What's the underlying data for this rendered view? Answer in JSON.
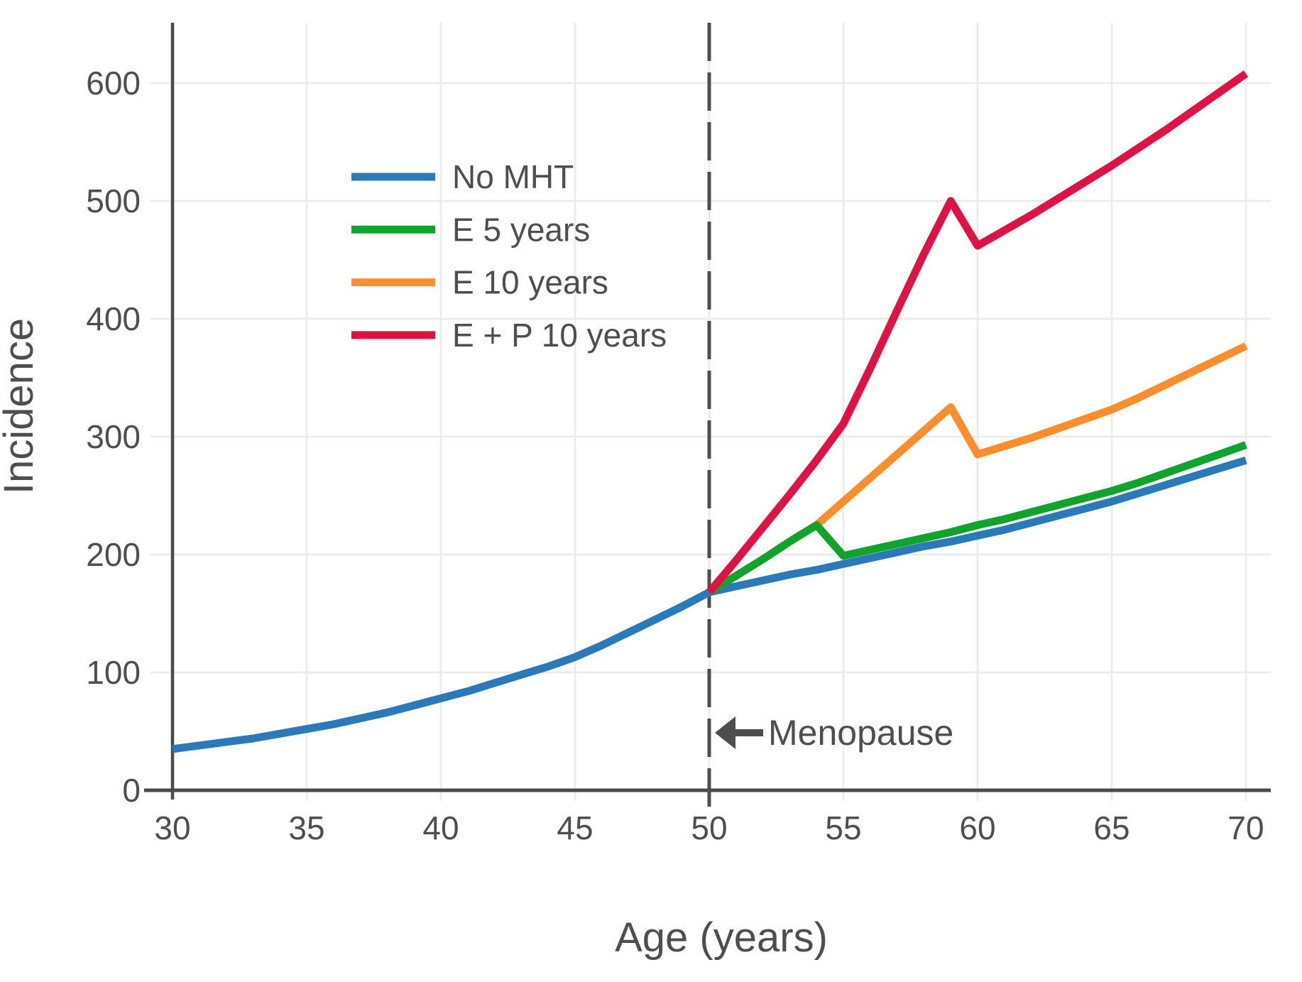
{
  "figure": {
    "xlabel": "Age (years)",
    "ylabel": "Incidence",
    "annotation_text": "Menopause"
  },
  "colors": {
    "background": "#ffffff",
    "grid": "#ececec",
    "axis": "#4a4a4a",
    "text": "#4e4e4e",
    "dashed_line": "#4e4e4e",
    "blue": "#2a7ab9",
    "green": "#10a42d",
    "orange": "#fe8d2b",
    "red": "#e01145"
  },
  "legend": {
    "items": [
      {
        "label": "No MHT",
        "color": "#2a7ab9"
      },
      {
        "label": "E 5 years",
        "color": "#10a42d"
      },
      {
        "label": "E 10 years",
        "color": "#fe8d2b"
      },
      {
        "label": "E + P 10 years",
        "color": "#e01145"
      }
    ]
  },
  "chart_data": {
    "type": "line",
    "title": "",
    "xlabel": "Age (years)",
    "ylabel": "Incidence",
    "xlim": [
      29,
      71
    ],
    "ylim": [
      0,
      650
    ],
    "grid": true,
    "legend_position": "upper-left-inside",
    "x_ticks": [
      30,
      35,
      40,
      45,
      50,
      55,
      60,
      65,
      70
    ],
    "y_ticks": [
      0,
      100,
      200,
      300,
      400,
      500,
      600
    ],
    "vline": {
      "x": 50,
      "style": "dashed",
      "color": "#4e4e4e",
      "label": "Menopause"
    },
    "annotations": [
      {
        "text": "Menopause",
        "x": 50.2,
        "y": 49,
        "arrow": "points-left-at-dashed-line"
      }
    ],
    "series": [
      {
        "name": "No MHT",
        "color": "#2a7ab9",
        "points": [
          [
            30,
            35
          ],
          [
            31,
            38
          ],
          [
            32,
            41
          ],
          [
            33,
            44
          ],
          [
            34,
            48
          ],
          [
            35,
            52
          ],
          [
            36,
            56
          ],
          [
            37,
            61
          ],
          [
            38,
            66
          ],
          [
            39,
            72
          ],
          [
            40,
            78
          ],
          [
            41,
            84
          ],
          [
            42,
            91
          ],
          [
            43,
            98
          ],
          [
            44,
            105
          ],
          [
            45,
            113
          ],
          [
            46,
            123
          ],
          [
            47,
            134
          ],
          [
            48,
            145
          ],
          [
            49,
            156
          ],
          [
            50,
            168
          ],
          [
            51,
            173
          ],
          [
            52,
            178
          ],
          [
            53,
            183
          ],
          [
            54,
            187
          ],
          [
            55,
            192
          ],
          [
            56,
            197
          ],
          [
            57,
            202
          ],
          [
            58,
            207
          ],
          [
            59,
            211
          ],
          [
            60,
            216
          ],
          [
            61,
            221
          ],
          [
            62,
            227
          ],
          [
            63,
            233
          ],
          [
            64,
            239
          ],
          [
            65,
            245
          ],
          [
            66,
            252
          ],
          [
            67,
            259
          ],
          [
            68,
            266
          ],
          [
            69,
            273
          ],
          [
            70,
            280
          ]
        ]
      },
      {
        "name": "E 5 years",
        "color": "#10a42d",
        "points": [
          [
            50,
            168
          ],
          [
            51,
            182
          ],
          [
            52,
            196
          ],
          [
            53,
            211
          ],
          [
            54,
            225
          ],
          [
            55,
            199
          ],
          [
            56,
            204
          ],
          [
            57,
            209
          ],
          [
            58,
            214
          ],
          [
            59,
            219
          ],
          [
            60,
            225
          ],
          [
            61,
            230
          ],
          [
            62,
            236
          ],
          [
            63,
            242
          ],
          [
            64,
            248
          ],
          [
            65,
            254
          ],
          [
            66,
            261
          ],
          [
            67,
            269
          ],
          [
            68,
            277
          ],
          [
            69,
            285
          ],
          [
            70,
            293
          ]
        ]
      },
      {
        "name": "E 10 years",
        "color": "#fe8d2b",
        "points": [
          [
            50,
            168
          ],
          [
            51,
            182
          ],
          [
            52,
            196
          ],
          [
            53,
            211
          ],
          [
            54,
            225
          ],
          [
            55,
            245
          ],
          [
            56,
            265
          ],
          [
            57,
            285
          ],
          [
            58,
            305
          ],
          [
            59,
            325
          ],
          [
            60,
            285
          ],
          [
            61,
            292
          ],
          [
            62,
            299
          ],
          [
            63,
            307
          ],
          [
            64,
            315
          ],
          [
            65,
            323
          ],
          [
            66,
            333
          ],
          [
            67,
            344
          ],
          [
            68,
            355
          ],
          [
            69,
            366
          ],
          [
            70,
            377
          ]
        ]
      },
      {
        "name": "E + P 10 years",
        "color": "#e01145",
        "points": [
          [
            50,
            168
          ],
          [
            51,
            195
          ],
          [
            52,
            223
          ],
          [
            53,
            251
          ],
          [
            54,
            280
          ],
          [
            55,
            311
          ],
          [
            56,
            358
          ],
          [
            57,
            407
          ],
          [
            58,
            455
          ],
          [
            59,
            500
          ],
          [
            60,
            462
          ],
          [
            61,
            475
          ],
          [
            62,
            488
          ],
          [
            63,
            502
          ],
          [
            64,
            516
          ],
          [
            65,
            530
          ],
          [
            66,
            545
          ],
          [
            67,
            560
          ],
          [
            68,
            576
          ],
          [
            69,
            592
          ],
          [
            70,
            608
          ]
        ]
      }
    ]
  }
}
